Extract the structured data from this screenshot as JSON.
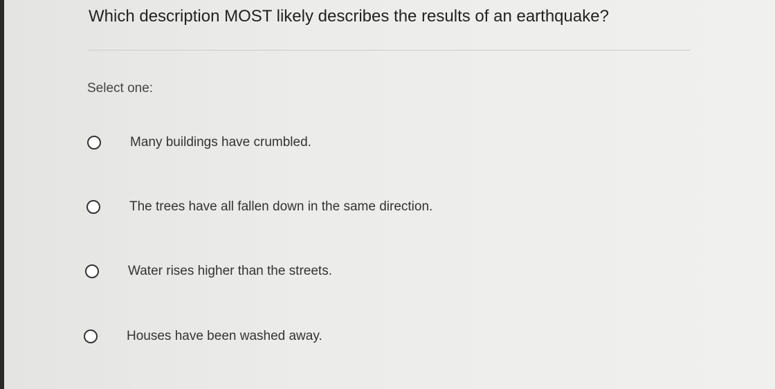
{
  "question": "Which description MOST likely describes the results of an earthquake?",
  "prompt": "Select one:",
  "options": [
    {
      "label": "Many buildings have crumbled."
    },
    {
      "label": "The trees have all fallen down in the same direction."
    },
    {
      "label": "Water rises higher than the streets."
    },
    {
      "label": "Houses have been washed away."
    }
  ]
}
